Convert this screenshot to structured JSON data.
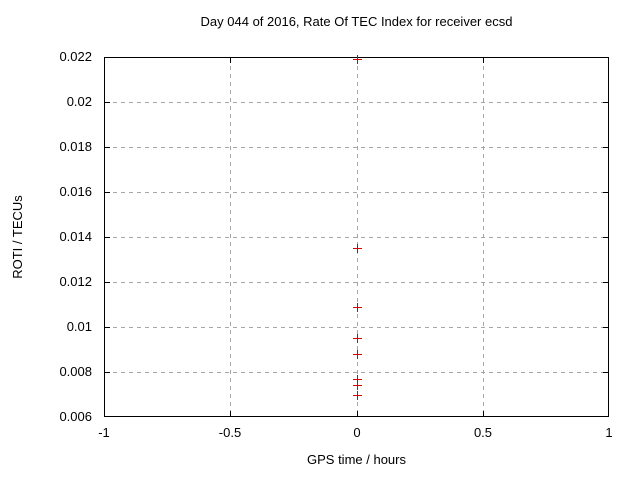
{
  "chart_data": {
    "type": "scatter",
    "title": "Day 044 of 2016, Rate Of TEC Index for receiver ecsd",
    "xlabel": "GPS time / hours",
    "ylabel": "ROTI / TECUs",
    "xlim": [
      -1,
      1
    ],
    "ylim": [
      0.006,
      0.022
    ],
    "grid": true,
    "legend_position": "none",
    "x_ticks": [
      {
        "value": -1,
        "label": "-1"
      },
      {
        "value": -0.5,
        "label": "-0.5"
      },
      {
        "value": 0,
        "label": "0"
      },
      {
        "value": 0.5,
        "label": "0.5"
      },
      {
        "value": 1,
        "label": "1"
      }
    ],
    "y_ticks": [
      {
        "value": 0.006,
        "label": "0.006"
      },
      {
        "value": 0.008,
        "label": "0.008"
      },
      {
        "value": 0.01,
        "label": "0.01"
      },
      {
        "value": 0.012,
        "label": "0.012"
      },
      {
        "value": 0.014,
        "label": "0.014"
      },
      {
        "value": 0.016,
        "label": "0.016"
      },
      {
        "value": 0.018,
        "label": "0.018"
      },
      {
        "value": 0.02,
        "label": "0.02"
      },
      {
        "value": 0.022,
        "label": "0.022"
      }
    ],
    "series": [
      {
        "name": "roti-points",
        "marker": "plus",
        "color": "#dd0000",
        "points": [
          {
            "x": 0,
            "y": 0.0219
          },
          {
            "x": 0,
            "y": 0.0135
          },
          {
            "x": 0,
            "y": 0.0109
          },
          {
            "x": 0,
            "y": 0.0095
          },
          {
            "x": 0,
            "y": 0.0088
          },
          {
            "x": 0,
            "y": 0.0077
          },
          {
            "x": 0,
            "y": 0.0074
          },
          {
            "x": 0,
            "y": 0.007
          }
        ]
      }
    ],
    "colors": {
      "background": "#ffffff",
      "axis": "#000000",
      "grid": "#a6a6a6",
      "text": "#000000"
    }
  }
}
